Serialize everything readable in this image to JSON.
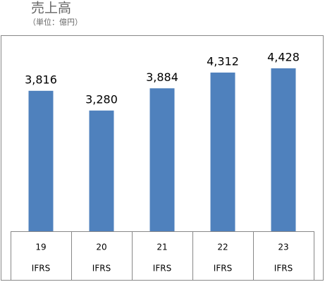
{
  "chart_data": {
    "type": "bar",
    "title": "売上高",
    "subtitle": "（単位：億円）",
    "categories": [
      "19",
      "20",
      "21",
      "22",
      "23"
    ],
    "category_sublabels": [
      "IFRS",
      "IFRS",
      "IFRS",
      "IFRS",
      "IFRS"
    ],
    "values": [
      3816,
      3280,
      3884,
      4312,
      4428
    ],
    "value_labels": [
      "3,816",
      "3,280",
      "3,884",
      "4,312",
      "4,428"
    ],
    "color": "#4f81bd"
  }
}
